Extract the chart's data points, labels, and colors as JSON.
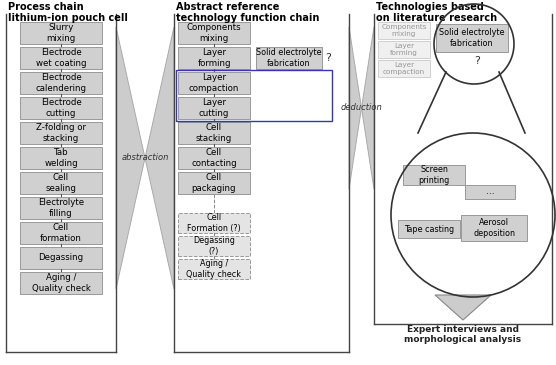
{
  "title_left": "Process chain\nlithium-ion pouch cell",
  "title_mid": "Abstract reference\ntechnology function chain",
  "title_right": "Technologies based\non literature research",
  "boxes_left": [
    "Slurry\nmixing",
    "Electrode\nwet coating",
    "Electrode\ncalendering",
    "Electrode\ncutting",
    "Z-folding or\nstacking",
    "Tab\nwelding",
    "Cell\nsealing",
    "Electrolyte\nfilling",
    "Cell\nformation",
    "Degassing",
    "Aging /\nQuality check"
  ],
  "boxes_mid_solid": [
    "Components\nmixing",
    "Layer\nforming",
    "Layer\ncompaction",
    "Layer\ncutting",
    "Cell\nstacking",
    "Cell\ncontacting",
    "Cell\npackaging"
  ],
  "boxes_mid_dashed": [
    "Cell\nFormation (?)",
    "Degassing\n(?)",
    "Aging /\nQuality check"
  ],
  "box_mid_right": "Solid electrolyte\nfabrication",
  "boxes_right_faded": [
    "Components\nmixing",
    "Layer\nforming",
    "Layer\ncompaction"
  ],
  "box_right_solid_electrolyte": "Solid electrolyte\nfabrication",
  "boxes_right_inner": [
    "Screen\nprinting",
    "...",
    "Tape casting",
    "Aerosol\ndeposition"
  ],
  "arrow_left_label": "abstraction",
  "arrow_right_label": "deduction",
  "bottom_text": "Expert interviews and\nmorphological analysis",
  "bg_color": "#ffffff",
  "box_fill_solid": "#d0d0d0",
  "box_fill_faded": "#e4e4e4",
  "box_stroke": "#999999",
  "highlight_box_stroke": "#3333bb",
  "arrow_fill": "#cccccc",
  "circle_stroke": "#333333"
}
